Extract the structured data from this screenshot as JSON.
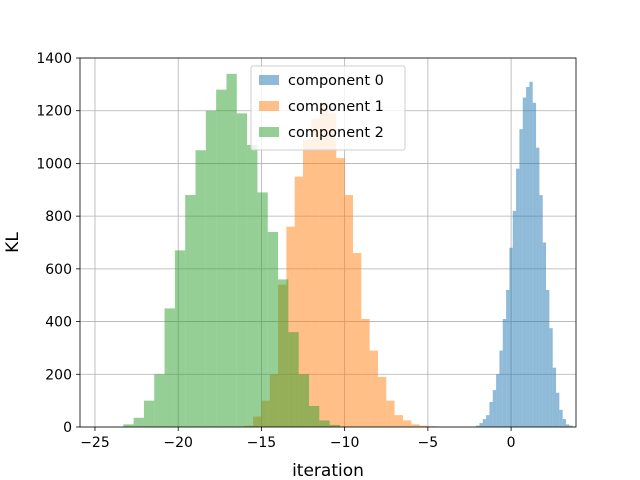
{
  "chart_data": {
    "type": "bar",
    "subtype": "histogram",
    "xlabel": "iteration",
    "ylabel": "KL",
    "xlim": [
      -25.9,
      3.9
    ],
    "ylim": [
      0,
      1400
    ],
    "xticks": [
      -25,
      -20,
      -15,
      -10,
      -5,
      0
    ],
    "yticks": [
      0,
      200,
      400,
      600,
      800,
      1000,
      1200,
      1400
    ],
    "grid": true,
    "legend_position": "top-center",
    "series": [
      {
        "name": "component 0",
        "color": "#1f77b4",
        "alpha": 0.5,
        "bin_start": -2.1,
        "bin_width": 0.2,
        "values": [
          5,
          15,
          30,
          45,
          95,
          140,
          200,
          290,
          410,
          520,
          680,
          820,
          980,
          1130,
          1250,
          1290,
          1310,
          1230,
          1060,
          880,
          700,
          520,
          375,
          225,
          130,
          65,
          30,
          10,
          5
        ]
      },
      {
        "name": "component 1",
        "color": "#ff7f0e",
        "alpha": 0.5,
        "bin_start": -16.0,
        "bin_width": 0.5,
        "values": [
          5,
          40,
          100,
          200,
          540,
          760,
          950,
          1090,
          1170,
          1230,
          1190,
          1020,
          880,
          660,
          410,
          290,
          190,
          100,
          45,
          25,
          10,
          5,
          3
        ]
      },
      {
        "name": "component 2",
        "color": "#2ca02c",
        "alpha": 0.5,
        "bin_start": -23.3,
        "bin_width": 0.62,
        "values": [
          10,
          35,
          100,
          200,
          450,
          670,
          880,
          1050,
          1200,
          1280,
          1340,
          1190,
          1070,
          890,
          740,
          560,
          360,
          200,
          80,
          25,
          8
        ]
      }
    ]
  }
}
